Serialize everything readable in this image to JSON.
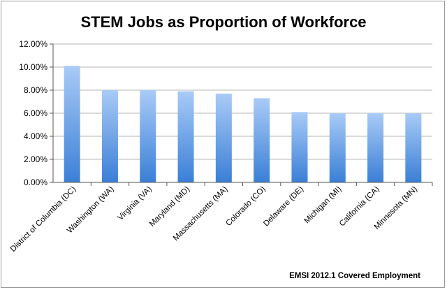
{
  "chart_data": {
    "type": "bar",
    "title": "STEM Jobs as Proportion of Workforce",
    "source_note": "EMSI 2012.1 Covered Employment",
    "categories": [
      "District of Columbia (DC)",
      "Washington (WA)",
      "Virginia (VA)",
      "Maryland (MD)",
      "Massachusetts (MA)",
      "Colorado (CO)",
      "Delaware (DE)",
      "Michigan (MI)",
      "California (CA)",
      "Minnesota (MN)"
    ],
    "values": [
      10.1,
      8.0,
      8.0,
      7.9,
      7.7,
      7.3,
      6.1,
      6.0,
      6.0,
      6.0
    ],
    "value_unit": "%",
    "ylim": [
      0,
      12
    ],
    "yticks": [
      "0.00%",
      "2.00%",
      "4.00%",
      "6.00%",
      "8.00%",
      "10.00%",
      "12.00%"
    ],
    "grid": true,
    "legend": "none",
    "colors": {
      "bar_top": "#a9cbf7",
      "bar_bottom": "#3a7fd6",
      "grid": "#b5b5b5"
    }
  }
}
